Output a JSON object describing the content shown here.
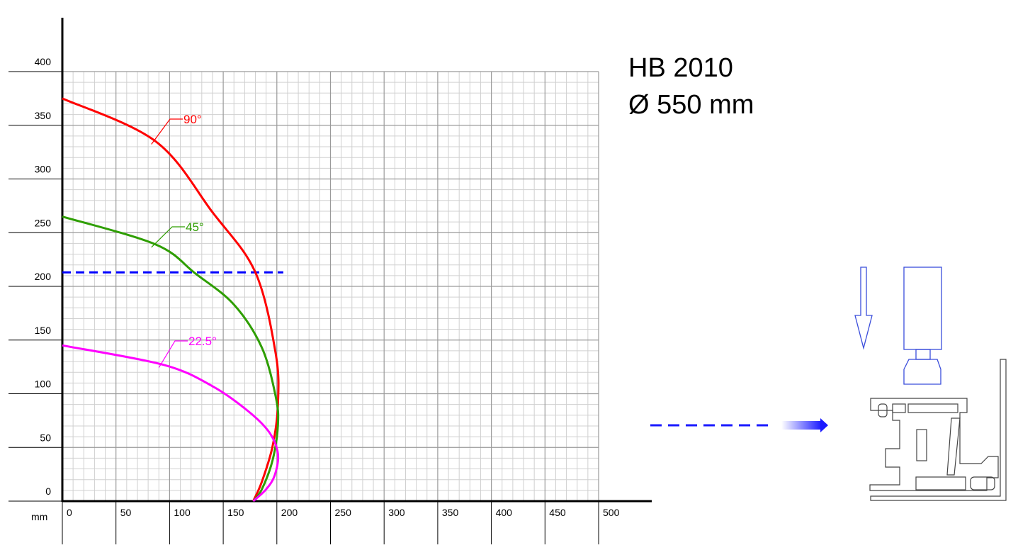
{
  "chart_data": {
    "type": "line",
    "title": "HB 2010",
    "subtitle": "Ø 550 mm",
    "x_unit_label": "mm",
    "xlim": [
      0,
      500
    ],
    "ylim": [
      0,
      400
    ],
    "xticks": [
      0,
      50,
      100,
      150,
      200,
      250,
      300,
      350,
      400,
      450,
      500
    ],
    "yticks": [
      0,
      50,
      100,
      150,
      200,
      250,
      300,
      350,
      400
    ],
    "grid": true,
    "series": [
      {
        "name": "90°",
        "color": "#ff0000",
        "x": [
          0,
          87,
          140,
          180,
          199,
          201,
          196,
          186,
          178
        ],
        "values": [
          375,
          335,
          269,
          213,
          137,
          90,
          51,
          18,
          0
        ]
      },
      {
        "name": "45°",
        "color": "#2e9e00",
        "x": [
          0,
          87,
          124,
          160,
          186,
          199,
          201,
          196,
          186,
          178
        ],
        "values": [
          265,
          239,
          212,
          183,
          143,
          97,
          71,
          38,
          11,
          0
        ]
      },
      {
        "name": "22.5°",
        "color": "#ff00ff",
        "x": [
          0,
          94,
          140,
          173,
          193,
          201,
          198,
          190,
          178
        ],
        "values": [
          145,
          127,
          107,
          84,
          64,
          44,
          24,
          11,
          0
        ]
      }
    ],
    "reference_line": {
      "y": 213,
      "x_end": 206,
      "color": "#0000ff"
    }
  }
}
